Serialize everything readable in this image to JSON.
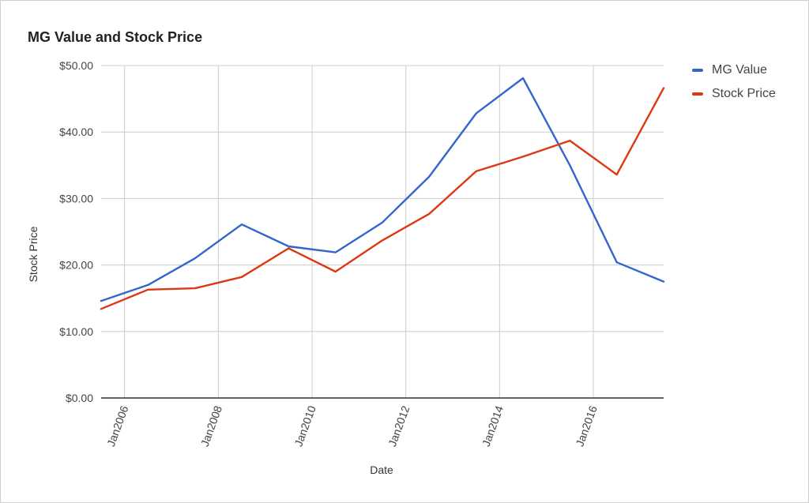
{
  "chart_data": {
    "type": "line",
    "title": "MG Value and Stock Price",
    "xlabel": "Date",
    "ylabel": "Stock Price",
    "ylim": [
      0,
      50
    ],
    "xlim": [
      "2005-07",
      "2017-07"
    ],
    "yticks": [
      "$0.00",
      "$10.00",
      "$20.00",
      "$30.00",
      "$40.00",
      "$50.00"
    ],
    "ytick_values": [
      0,
      10,
      20,
      30,
      40,
      50
    ],
    "xticks": [
      "Jan2006",
      "Jan2008",
      "Jan2010",
      "Jan2012",
      "Jan2014",
      "Jan2016"
    ],
    "xtick_values": [
      "2006-01",
      "2008-01",
      "2010-01",
      "2012-01",
      "2014-01",
      "2016-01"
    ],
    "x": [
      "2005-07",
      "2006-07",
      "2007-07",
      "2008-07",
      "2009-07",
      "2010-07",
      "2011-07",
      "2012-07",
      "2013-07",
      "2014-07",
      "2015-07",
      "2016-07",
      "2017-07"
    ],
    "series": [
      {
        "name": "MG Value",
        "color": "#3366cc",
        "values": [
          14.6,
          17.0,
          21.0,
          26.1,
          22.8,
          21.9,
          26.4,
          33.3,
          42.8,
          48.1,
          35.0,
          20.4,
          17.5
        ]
      },
      {
        "name": "Stock Price",
        "color": "#dc3912",
        "values": [
          13.4,
          16.3,
          16.5,
          18.2,
          22.5,
          19.0,
          23.7,
          27.7,
          34.1,
          36.3,
          38.7,
          33.6,
          46.6
        ]
      }
    ],
    "grid": true,
    "legend": "right"
  }
}
